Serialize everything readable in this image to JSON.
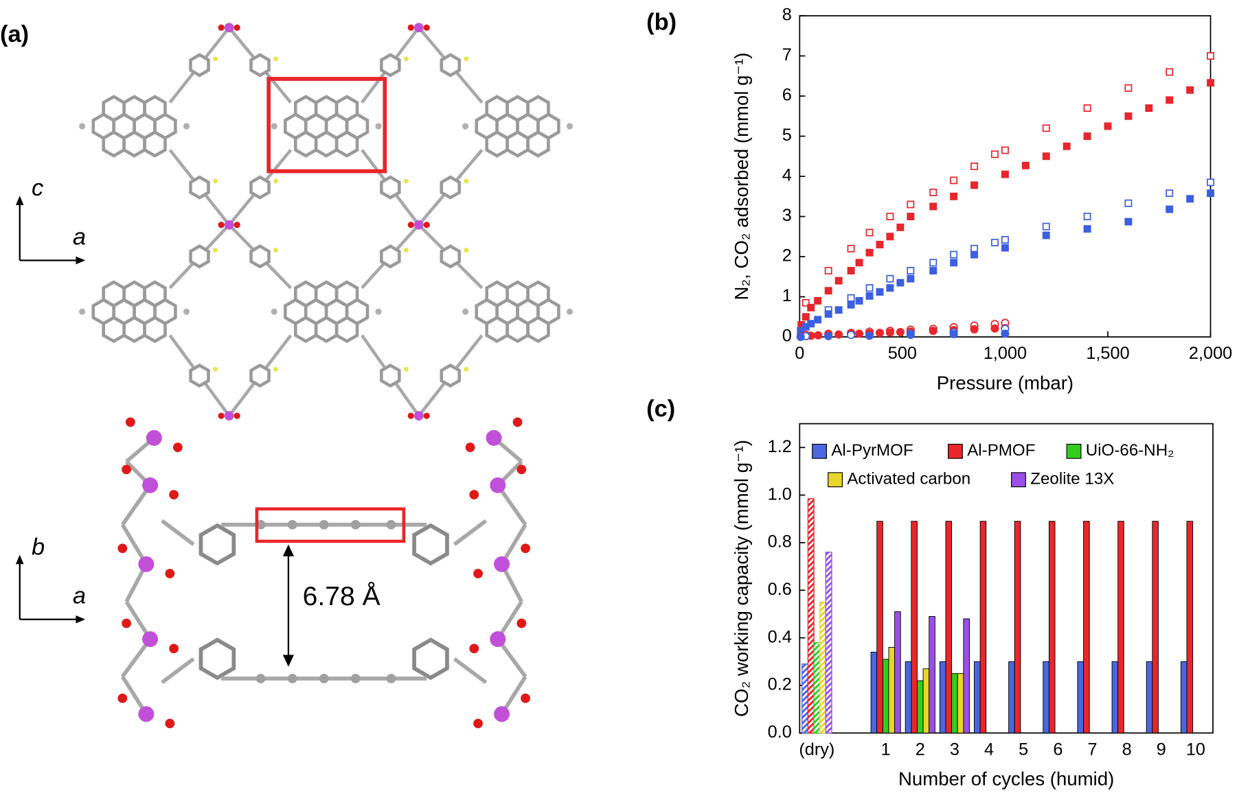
{
  "panel_labels": [
    "(a)",
    "(b)",
    "(c)"
  ],
  "structure": {
    "top_axes": [
      "c",
      "a"
    ],
    "bottom_axes": [
      "b",
      "a"
    ],
    "distance": "6.78 Å"
  },
  "chart_data": [
    {
      "type": "scatter",
      "xlabel": "Pressure (mbar)",
      "ylabel": "N₂, CO₂ adsorbed (mmol g⁻¹)",
      "xlim": [
        0,
        2000
      ],
      "ylim": [
        0,
        8
      ],
      "xticks": [
        0,
        500,
        {
          "value": 1000,
          "label": "1,000"
        },
        {
          "value": 1500,
          "label": "1,500"
        },
        {
          "value": 2000,
          "label": "2,000"
        }
      ],
      "yticks": [
        0,
        1,
        2,
        3,
        4,
        5,
        6,
        7,
        8
      ],
      "series": [
        {
          "color": "#e8262b",
          "marker": "square",
          "filled": false,
          "x": [
            30,
            140,
            250,
            340,
            440,
            540,
            650,
            750,
            850,
            950,
            1000,
            1200,
            1400,
            1600,
            1800,
            2000
          ],
          "values": [
            0.85,
            1.65,
            2.2,
            2.6,
            3.0,
            3.3,
            3.6,
            3.9,
            4.25,
            4.55,
            4.65,
            5.2,
            5.7,
            6.2,
            6.6,
            7.0
          ]
        },
        {
          "color": "#e8262b",
          "marker": "square",
          "filled": true,
          "x": [
            8,
            30,
            55,
            88,
            140,
            190,
            250,
            290,
            340,
            390,
            440,
            490,
            540,
            650,
            750,
            850,
            1000,
            1100,
            1200,
            1300,
            1400,
            1500,
            1600,
            1700,
            1800,
            1900,
            2000
          ],
          "values": [
            0.3,
            0.5,
            0.73,
            0.9,
            1.15,
            1.4,
            1.65,
            1.85,
            2.1,
            2.3,
            2.5,
            2.73,
            3.0,
            3.25,
            3.5,
            3.78,
            4.05,
            4.27,
            4.5,
            4.75,
            5.0,
            5.25,
            5.5,
            5.7,
            5.9,
            6.15,
            6.33
          ]
        },
        {
          "color": "#3b5fe0",
          "marker": "square",
          "filled": false,
          "x": [
            140,
            250,
            340,
            440,
            540,
            650,
            750,
            850,
            950,
            1000,
            1200,
            1400,
            1600,
            1800,
            2000
          ],
          "values": [
            0.67,
            0.97,
            1.22,
            1.45,
            1.65,
            1.85,
            2.05,
            2.2,
            2.35,
            2.42,
            2.75,
            3.0,
            3.33,
            3.58,
            3.85
          ]
        },
        {
          "color": "#3b5fe0",
          "marker": "square",
          "filled": true,
          "x": [
            5,
            30,
            55,
            88,
            140,
            190,
            250,
            290,
            340,
            390,
            440,
            490,
            540,
            650,
            750,
            850,
            1000,
            1200,
            1400,
            1600,
            1800,
            1900,
            2000
          ],
          "values": [
            0.15,
            0.25,
            0.33,
            0.43,
            0.57,
            0.67,
            0.8,
            0.9,
            1.02,
            1.12,
            1.22,
            1.35,
            1.45,
            1.65,
            1.85,
            2.05,
            2.22,
            2.53,
            2.69,
            2.87,
            3.18,
            3.44,
            3.58
          ]
        },
        {
          "color": "#e8262b",
          "marker": "circle",
          "filled": false,
          "x": [
            30,
            140,
            250,
            340,
            440,
            540,
            650,
            750,
            850,
            950,
            1000
          ],
          "values": [
            0.05,
            0.08,
            0.1,
            0.13,
            0.15,
            0.18,
            0.2,
            0.24,
            0.28,
            0.32,
            0.35
          ]
        },
        {
          "color": "#e8262b",
          "marker": "circle",
          "filled": true,
          "x": [
            5,
            30,
            55,
            90,
            140,
            190,
            250,
            290,
            340,
            390,
            440,
            490,
            540,
            650,
            750,
            850,
            950,
            1000
          ],
          "values": [
            0.01,
            0.02,
            0.03,
            0.04,
            0.05,
            0.06,
            0.07,
            0.08,
            0.09,
            0.1,
            0.11,
            0.12,
            0.13,
            0.15,
            0.17,
            0.19,
            0.21,
            0.22
          ]
        },
        {
          "color": "#3b5fe0",
          "marker": "circle",
          "filled": false,
          "x": [
            30,
            250,
            540,
            750,
            1000
          ],
          "values": [
            0.02,
            0.05,
            0.08,
            0.11,
            0.2
          ]
        },
        {
          "color": "#3b5fe0",
          "marker": "circle",
          "filled": true,
          "x": [
            5,
            140,
            340,
            540,
            750,
            1000
          ],
          "values": [
            0.0,
            0.02,
            0.03,
            0.05,
            0.07,
            0.08
          ]
        }
      ]
    },
    {
      "type": "bar",
      "xlabel": "Number of cycles (humid)",
      "ylabel": "CO₂ working capacity (mmol g⁻¹)",
      "categories": [
        "(dry)",
        null,
        "1",
        "2",
        "3",
        "4",
        "5",
        "6",
        "7",
        "8",
        "9",
        "10"
      ],
      "ylim": [
        0,
        1.3
      ],
      "yticks": [
        {
          "value": 0,
          "label": "0.0"
        },
        0.2,
        0.4,
        0.6,
        0.8,
        {
          "value": 1,
          "label": "1.0"
        },
        1.2
      ],
      "hatched": [
        0
      ],
      "series": [
        {
          "name": "Al-PyrMOF",
          "color": "#4a67e0",
          "values": [
            0.29,
            null,
            0.34,
            0.3,
            0.3,
            0.3,
            0.3,
            0.3,
            0.3,
            0.3,
            0.3,
            0.3
          ]
        },
        {
          "name": "Al-PMOF",
          "color": "#e8262b",
          "values": [
            0.985,
            null,
            0.89,
            0.89,
            0.89,
            0.89,
            0.89,
            0.89,
            0.89,
            0.89,
            0.89,
            0.89
          ]
        },
        {
          "name": "UiO-66-NH₂",
          "color": "#33cc1f",
          "values": [
            0.38,
            null,
            0.31,
            0.22,
            0.25,
            null,
            null,
            null,
            null,
            null,
            null,
            null
          ]
        },
        {
          "name": "Activated carbon",
          "color": "#e8d62a",
          "values": [
            0.55,
            null,
            0.36,
            0.27,
            0.25,
            null,
            null,
            null,
            null,
            null,
            null,
            null
          ]
        },
        {
          "name": "Zeolite 13X",
          "color": "#9b4fe8",
          "values": [
            0.76,
            null,
            0.51,
            0.49,
            0.48,
            null,
            null,
            null,
            null,
            null,
            null,
            null
          ]
        }
      ]
    }
  ]
}
